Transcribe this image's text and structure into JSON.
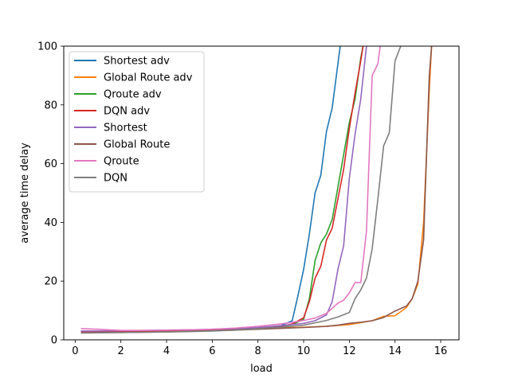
{
  "chart_data": {
    "type": "line",
    "title": "",
    "xlabel": "load",
    "ylabel": "average time delay",
    "xlim": [
      -0.5,
      16.8
    ],
    "ylim": [
      0,
      100
    ],
    "xticks": [
      0,
      2,
      4,
      6,
      8,
      10,
      12,
      14,
      16
    ],
    "yticks": [
      0,
      20,
      40,
      60,
      80,
      100
    ],
    "grid": false,
    "legend_position": "top-left",
    "series": [
      {
        "name": "Shortest adv",
        "color": "#1f77b4",
        "points": [
          [
            0.25,
            2.6
          ],
          [
            1,
            2.7
          ],
          [
            2,
            2.8
          ],
          [
            3,
            2.9
          ],
          [
            4,
            3.0
          ],
          [
            5,
            3.1
          ],
          [
            6,
            3.3
          ],
          [
            7,
            3.6
          ],
          [
            8,
            4.0
          ],
          [
            9,
            4.8
          ],
          [
            9.5,
            6.5
          ],
          [
            9.75,
            15
          ],
          [
            10,
            24
          ],
          [
            10.25,
            36
          ],
          [
            10.5,
            50
          ],
          [
            10.75,
            56
          ],
          [
            11,
            71
          ],
          [
            11.25,
            79
          ],
          [
            11.5,
            94
          ],
          [
            11.6,
            100
          ]
        ]
      },
      {
        "name": "Global Route adv",
        "color": "#ff7f0e",
        "points": [
          [
            0.25,
            2.7
          ],
          [
            1,
            2.8
          ],
          [
            2,
            2.9
          ],
          [
            3,
            3.0
          ],
          [
            4,
            3.1
          ],
          [
            5,
            3.3
          ],
          [
            6,
            3.5
          ],
          [
            7,
            3.7
          ],
          [
            8,
            3.9
          ],
          [
            9,
            4.1
          ],
          [
            10,
            4.3
          ],
          [
            11,
            4.6
          ],
          [
            12,
            5.2
          ],
          [
            13,
            6.5
          ],
          [
            13.5,
            8.0
          ],
          [
            14,
            8.2
          ],
          [
            14.5,
            11
          ],
          [
            14.75,
            14
          ],
          [
            15,
            19
          ],
          [
            15.25,
            40
          ],
          [
            15.5,
            85
          ],
          [
            15.6,
            100
          ]
        ]
      },
      {
        "name": "Qroute adv",
        "color": "#2ca02c",
        "points": [
          [
            0.25,
            2.6
          ],
          [
            1,
            2.7
          ],
          [
            2,
            2.8
          ],
          [
            3,
            2.9
          ],
          [
            4,
            3.0
          ],
          [
            5,
            3.1
          ],
          [
            6,
            3.3
          ],
          [
            7,
            3.6
          ],
          [
            8,
            4.0
          ],
          [
            9,
            4.6
          ],
          [
            9.5,
            5.2
          ],
          [
            10,
            7
          ],
          [
            10.25,
            14
          ],
          [
            10.5,
            27
          ],
          [
            10.75,
            33
          ],
          [
            11,
            36
          ],
          [
            11.25,
            41
          ],
          [
            11.5,
            52
          ],
          [
            11.75,
            63
          ],
          [
            12,
            74
          ],
          [
            12.25,
            82
          ],
          [
            12.5,
            96
          ],
          [
            12.6,
            100
          ]
        ]
      },
      {
        "name": "DQN adv",
        "color": "#d62728",
        "points": [
          [
            0.25,
            2.6
          ],
          [
            1,
            2.7
          ],
          [
            2,
            2.8
          ],
          [
            3,
            2.9
          ],
          [
            4,
            3.0
          ],
          [
            5,
            3.1
          ],
          [
            6,
            3.3
          ],
          [
            7,
            3.6
          ],
          [
            8,
            4.0
          ],
          [
            9,
            4.6
          ],
          [
            9.5,
            5.4
          ],
          [
            10,
            7.5
          ],
          [
            10.25,
            13
          ],
          [
            10.5,
            21
          ],
          [
            10.75,
            25
          ],
          [
            11,
            34
          ],
          [
            11.25,
            38
          ],
          [
            11.5,
            48
          ],
          [
            11.75,
            58
          ],
          [
            12,
            72
          ],
          [
            12.25,
            84
          ],
          [
            12.5,
            95
          ],
          [
            12.6,
            100
          ]
        ]
      },
      {
        "name": "Shortest",
        "color": "#9467bd",
        "points": [
          [
            0.25,
            3.0
          ],
          [
            1,
            3.0
          ],
          [
            2,
            3.1
          ],
          [
            3,
            3.2
          ],
          [
            4,
            3.3
          ],
          [
            5,
            3.4
          ],
          [
            6,
            3.6
          ],
          [
            7,
            3.8
          ],
          [
            8,
            4.2
          ],
          [
            9,
            4.8
          ],
          [
            10,
            5.6
          ],
          [
            10.5,
            6.5
          ],
          [
            11,
            8.5
          ],
          [
            11.25,
            13
          ],
          [
            11.5,
            24
          ],
          [
            11.75,
            32
          ],
          [
            12,
            55
          ],
          [
            12.25,
            70
          ],
          [
            12.5,
            82
          ],
          [
            12.75,
            100
          ]
        ]
      },
      {
        "name": "Global Route",
        "color": "#8c564b",
        "points": [
          [
            0.25,
            2.3
          ],
          [
            1,
            2.4
          ],
          [
            2,
            2.5
          ],
          [
            3,
            2.6
          ],
          [
            4,
            2.7
          ],
          [
            5,
            2.9
          ],
          [
            6,
            3.1
          ],
          [
            7,
            3.3
          ],
          [
            8,
            3.6
          ],
          [
            9,
            3.9
          ],
          [
            10,
            4.2
          ],
          [
            11,
            4.6
          ],
          [
            11.5,
            5.0
          ],
          [
            12,
            5.6
          ],
          [
            12.5,
            6.0
          ],
          [
            13,
            6.5
          ],
          [
            13.5,
            7.6
          ],
          [
            14,
            9.8
          ],
          [
            14.5,
            11.5
          ],
          [
            14.75,
            14
          ],
          [
            15,
            20
          ],
          [
            15.25,
            34
          ],
          [
            15.5,
            90
          ],
          [
            15.6,
            100
          ]
        ]
      },
      {
        "name": "Qroute",
        "color": "#e377c2",
        "points": [
          [
            0.25,
            3.8
          ],
          [
            1,
            3.6
          ],
          [
            2,
            3.2
          ],
          [
            3,
            3.2
          ],
          [
            4,
            3.3
          ],
          [
            5,
            3.4
          ],
          [
            6,
            3.6
          ],
          [
            7,
            4.0
          ],
          [
            8,
            4.6
          ],
          [
            9,
            5.4
          ],
          [
            9.5,
            6.0
          ],
          [
            10,
            6.6
          ],
          [
            10.5,
            7.4
          ],
          [
            11,
            9.0
          ],
          [
            11.5,
            12.5
          ],
          [
            11.75,
            13.5
          ],
          [
            12,
            16
          ],
          [
            12.25,
            19.5
          ],
          [
            12.5,
            19.5
          ],
          [
            12.75,
            37
          ],
          [
            13,
            90
          ],
          [
            13.25,
            94
          ],
          [
            13.35,
            100
          ]
        ]
      },
      {
        "name": "DQN",
        "color": "#7f7f7f",
        "points": [
          [
            0.25,
            2.4
          ],
          [
            1,
            2.4
          ],
          [
            2,
            2.5
          ],
          [
            3,
            2.6
          ],
          [
            4,
            2.7
          ],
          [
            5,
            2.8
          ],
          [
            6,
            3.0
          ],
          [
            7,
            3.3
          ],
          [
            8,
            3.8
          ],
          [
            9,
            4.3
          ],
          [
            10,
            5.0
          ],
          [
            10.5,
            5.8
          ],
          [
            11,
            6.6
          ],
          [
            11.5,
            7.8
          ],
          [
            12,
            9.3
          ],
          [
            12.25,
            14
          ],
          [
            12.5,
            17
          ],
          [
            12.75,
            21
          ],
          [
            13,
            31
          ],
          [
            13.25,
            48
          ],
          [
            13.5,
            66
          ],
          [
            13.75,
            70.5
          ],
          [
            14,
            95
          ],
          [
            14.25,
            100
          ]
        ]
      }
    ]
  }
}
